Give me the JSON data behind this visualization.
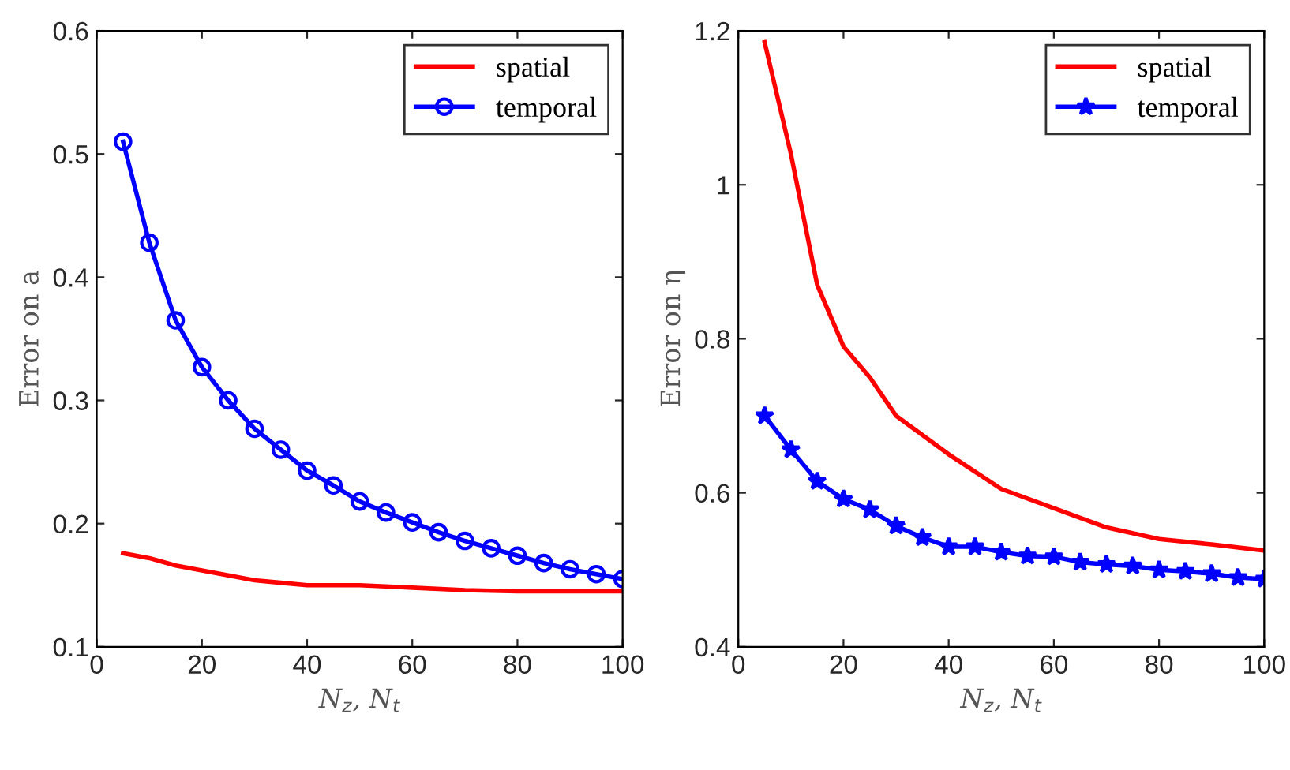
{
  "chart_data": [
    {
      "type": "line",
      "xlabel": "N$_{z}$, N$_{t}$",
      "ylabel": "Error on a",
      "xlim": [
        0,
        100
      ],
      "ylim": [
        0.1,
        0.6
      ],
      "xticks": [
        0,
        20,
        40,
        60,
        80,
        100
      ],
      "yticks": [
        0.1,
        0.2,
        0.3,
        0.4,
        0.5,
        0.6
      ],
      "grid": false,
      "legend": "top right",
      "series": [
        {
          "name": "spatial",
          "color": "#ff0000",
          "marker": "none",
          "x": [
            5,
            10,
            15,
            20,
            25,
            30,
            35,
            40,
            50,
            60,
            70,
            80,
            90,
            100
          ],
          "values": [
            0.176,
            0.172,
            0.166,
            0.162,
            0.158,
            0.154,
            0.152,
            0.15,
            0.15,
            0.148,
            0.146,
            0.145,
            0.145,
            0.145
          ]
        },
        {
          "name": "temporal",
          "color": "#0000ff",
          "marker": "circle",
          "x": [
            5,
            10,
            15,
            20,
            25,
            30,
            35,
            40,
            45,
            50,
            55,
            60,
            65,
            70,
            75,
            80,
            85,
            90,
            95,
            100
          ],
          "values": [
            0.51,
            0.428,
            0.365,
            0.327,
            0.3,
            0.277,
            0.26,
            0.243,
            0.231,
            0.218,
            0.209,
            0.201,
            0.193,
            0.186,
            0.18,
            0.174,
            0.168,
            0.163,
            0.159,
            0.155
          ]
        }
      ]
    },
    {
      "type": "line",
      "xlabel": "N$_{z}$, N$_{t}$",
      "ylabel": "Error on η",
      "xlim": [
        0,
        100
      ],
      "ylim": [
        0.4,
        1.2
      ],
      "xticks": [
        0,
        20,
        40,
        60,
        80,
        100
      ],
      "yticks": [
        0.4,
        0.6,
        0.8,
        1,
        1.2
      ],
      "grid": false,
      "legend": "top right",
      "series": [
        {
          "name": "spatial",
          "color": "#ff0000",
          "marker": "none",
          "x": [
            5,
            10,
            15,
            20,
            25,
            30,
            40,
            50,
            60,
            70,
            80,
            90,
            100
          ],
          "values": [
            1.185,
            1.04,
            0.87,
            0.79,
            0.75,
            0.7,
            0.65,
            0.605,
            0.58,
            0.555,
            0.54,
            0.533,
            0.525
          ]
        },
        {
          "name": "temporal",
          "color": "#0000ff",
          "marker": "star",
          "x": [
            5,
            10,
            15,
            20,
            25,
            30,
            35,
            40,
            45,
            50,
            55,
            60,
            65,
            70,
            75,
            80,
            85,
            90,
            95,
            100
          ],
          "values": [
            0.7,
            0.656,
            0.615,
            0.592,
            0.578,
            0.557,
            0.542,
            0.53,
            0.53,
            0.523,
            0.518,
            0.517,
            0.51,
            0.507,
            0.505,
            0.5,
            0.498,
            0.495,
            0.49,
            0.488
          ]
        }
      ]
    }
  ]
}
